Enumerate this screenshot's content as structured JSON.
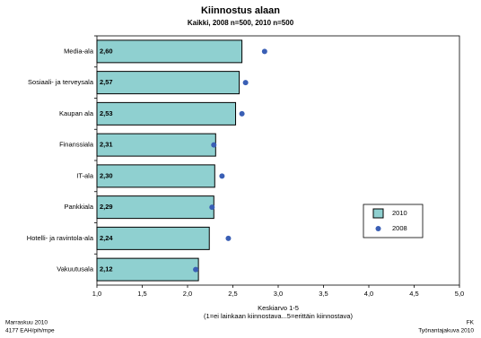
{
  "chart_data": {
    "type": "bar",
    "orientation": "horizontal",
    "title": "Kiinnostus alaan",
    "subtitle": "Kaikki, 2008 n=500, 2010 n=500",
    "xlabel": [
      "Keskiarvo 1-5",
      "(1=ei lainkaan kiinnostava...5=erittäin kiinnostava)"
    ],
    "categories": [
      "Media-ala",
      "Sosiaali- ja terveysala",
      "Kaupan ala",
      "Finanssiala",
      "IT-ala",
      "Pankkiala",
      "Hotelli- ja ravintola-ala",
      "Vakuutusala"
    ],
    "series": [
      {
        "name": "2010",
        "color": "#8fd0d0",
        "marker": "bar",
        "values": [
          2.6,
          2.57,
          2.53,
          2.31,
          2.3,
          2.29,
          2.24,
          2.12
        ],
        "value_labels": [
          "2,60",
          "2,57",
          "2,53",
          "2,31",
          "2,30",
          "2,29",
          "2,24",
          "2,12"
        ]
      },
      {
        "name": "2008",
        "color": "#3a5fb5",
        "marker": "dot",
        "values": [
          2.85,
          2.64,
          2.6,
          2.29,
          2.38,
          2.27,
          2.45,
          2.09
        ]
      }
    ],
    "xlim": [
      1,
      5
    ],
    "xticks": [
      {
        "value": 1,
        "label": "1,0"
      },
      {
        "value": 1.5,
        "label": "1,5"
      },
      {
        "value": 2,
        "label": "2,0"
      },
      {
        "value": 2.5,
        "label": "2,5"
      },
      {
        "value": 3,
        "label": "3,0"
      },
      {
        "value": 3.5,
        "label": "3,5"
      },
      {
        "value": 4,
        "label": "4,0"
      },
      {
        "value": 4.5,
        "label": "4,5"
      },
      {
        "value": 5,
        "label": "5,0"
      }
    ],
    "footer_left": [
      "Marraskuu 2010",
      "4177 EAH/pih/mpe"
    ],
    "footer_right": [
      "FK",
      "Työnantajakuva 2010"
    ]
  }
}
